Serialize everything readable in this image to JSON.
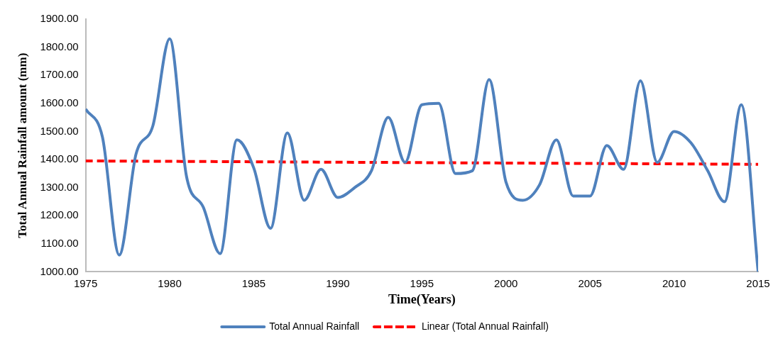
{
  "chart_data": {
    "type": "line",
    "xlabel": "Time(Years)",
    "ylabel": "Total Annual Rainfall amount (mm)",
    "x": [
      1975,
      1976,
      1977,
      1978,
      1979,
      1980,
      1981,
      1982,
      1983,
      1984,
      1985,
      1986,
      1987,
      1988,
      1989,
      1990,
      1991,
      1992,
      1993,
      1994,
      1995,
      1996,
      1997,
      1998,
      1999,
      2000,
      2001,
      2002,
      2003,
      2004,
      2005,
      2006,
      2007,
      2008,
      2009,
      2010,
      2011,
      2012,
      2013,
      2014,
      2015
    ],
    "series": [
      {
        "name": "Total Annual Rainfall",
        "color": "#4f81bd",
        "line_style": "solid",
        "values": [
          1580,
          1480,
          1060,
          1420,
          1520,
          1830,
          1340,
          1230,
          1065,
          1470,
          1370,
          1155,
          1495,
          1255,
          1365,
          1265,
          1300,
          1360,
          1550,
          1390,
          1595,
          1600,
          1350,
          1360,
          1685,
          1320,
          1255,
          1310,
          1470,
          1270,
          1270,
          1450,
          1365,
          1680,
          1390,
          1500,
          1460,
          1360,
          1250,
          1595,
          1000
        ]
      },
      {
        "name": "Linear (Total Annual Rainfall)",
        "color": "#ff0000",
        "line_style": "dashed",
        "x": [
          1975,
          2015
        ],
        "values": [
          1395,
          1383
        ]
      }
    ],
    "xlim": [
      1975,
      2015
    ],
    "xticks": [
      1975,
      1980,
      1985,
      1990,
      1995,
      2000,
      2005,
      2010,
      2015
    ],
    "ylim": [
      1000,
      1900
    ],
    "yticks": [
      {
        "value": 1000,
        "label": "1000.00"
      },
      {
        "value": 1100,
        "label": "1100.00"
      },
      {
        "value": 1200,
        "label": "1200.00"
      },
      {
        "value": 1300,
        "label": "1300.00"
      },
      {
        "value": 1400,
        "label": "1400.00"
      },
      {
        "value": 1500,
        "label": "1500.00"
      },
      {
        "value": 1600,
        "label": "1600.00"
      },
      {
        "value": 1700,
        "label": "1700.00"
      },
      {
        "value": 1800,
        "label": "1800.00"
      },
      {
        "value": 1900,
        "label": "1900.00"
      }
    ],
    "grid": false,
    "legend": "bottom",
    "marker": "none"
  }
}
